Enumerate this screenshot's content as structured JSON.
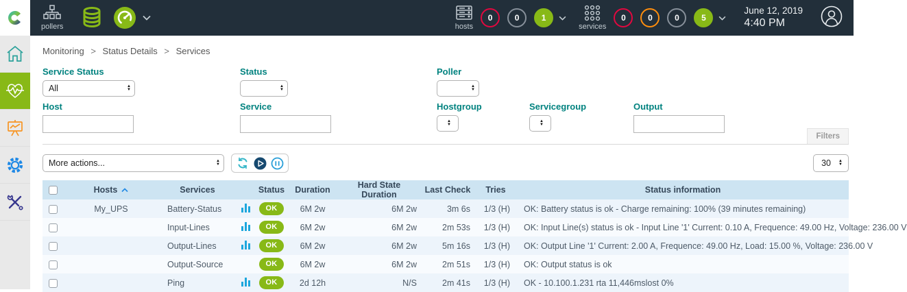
{
  "topbar": {
    "pollers": {
      "label": "pollers"
    },
    "hosts_section": {
      "label": "hosts",
      "counters": [
        {
          "value": "0",
          "type": "down"
        },
        {
          "value": "0",
          "type": "unreachable"
        },
        {
          "value": "1",
          "type": "up"
        }
      ]
    },
    "services_section": {
      "label": "services",
      "counters": [
        {
          "value": "0",
          "type": "critical"
        },
        {
          "value": "0",
          "type": "warning"
        },
        {
          "value": "0",
          "type": "unknown"
        },
        {
          "value": "5",
          "type": "ok"
        }
      ]
    },
    "clock": {
      "date": "June 12, 2019",
      "time": "4:40 PM"
    }
  },
  "sidebar": {
    "items": [
      {
        "icon": "home-icon",
        "active": false
      },
      {
        "icon": "monitoring-heartbeat-icon",
        "active": true
      },
      {
        "icon": "reporting-easel-icon",
        "active": false
      },
      {
        "icon": "configuration-gear-icon",
        "active": false
      },
      {
        "icon": "administration-tools-icon",
        "active": false
      }
    ]
  },
  "breadcrumb": {
    "items": [
      "Monitoring",
      "Status Details",
      "Services"
    ],
    "separator": ">"
  },
  "filters": {
    "panel_label": "Filters",
    "service_status": {
      "label": "Service Status",
      "value": "All"
    },
    "status": {
      "label": "Status",
      "value": ""
    },
    "poller": {
      "label": "Poller",
      "value": ""
    },
    "host": {
      "label": "Host",
      "value": ""
    },
    "service": {
      "label": "Service",
      "value": ""
    },
    "hostgroup": {
      "label": "Hostgroup",
      "value": ""
    },
    "servicegroup": {
      "label": "Servicegroup",
      "value": ""
    },
    "output": {
      "label": "Output",
      "value": ""
    }
  },
  "toolbar": {
    "more_actions_label": "More actions...",
    "action_icons": [
      "refresh-icon",
      "play-icon",
      "pause-icon"
    ],
    "page_size": "30"
  },
  "table": {
    "headers": {
      "hosts": "Hosts",
      "services": "Services",
      "status": "Status",
      "duration": "Duration",
      "hard_state_duration": "Hard State Duration",
      "last_check": "Last Check",
      "tries": "Tries",
      "status_information": "Status information"
    },
    "rows": [
      {
        "host": "My_UPS",
        "service": "Battery-Status",
        "has_graph": true,
        "status": "OK",
        "duration": "6M 2w",
        "hard_state_duration": "6M 2w",
        "last_check": "3m 6s",
        "tries": "1/3 (H)",
        "info": "OK: Battery status is ok - Charge remaining: 100% (39 minutes remaining)"
      },
      {
        "host": "",
        "service": "Input-Lines",
        "has_graph": true,
        "status": "OK",
        "duration": "6M 2w",
        "hard_state_duration": "6M 2w",
        "last_check": "2m 53s",
        "tries": "1/3 (H)",
        "info": "OK: Input Line(s) status is ok - Input Line '1' Current: 0.10 A, Frequence: 49.00 Hz, Voltage: 236.00 V"
      },
      {
        "host": "",
        "service": "Output-Lines",
        "has_graph": true,
        "status": "OK",
        "duration": "6M 2w",
        "hard_state_duration": "6M 2w",
        "last_check": "5m 16s",
        "tries": "1/3 (H)",
        "info": "OK: Output Line '1' Current: 2.00 A, Frequence: 49.00 Hz, Load: 15.00 %, Voltage: 236.00 V"
      },
      {
        "host": "",
        "service": "Output-Source",
        "has_graph": false,
        "status": "OK",
        "duration": "6M 2w",
        "hard_state_duration": "6M 2w",
        "last_check": "2m 51s",
        "tries": "1/3 (H)",
        "info": "OK: Output status is ok"
      },
      {
        "host": "",
        "service": "Ping",
        "has_graph": true,
        "status": "OK",
        "duration": "2d 12h",
        "hard_state_duration": "N/S",
        "last_check": "2m 41s",
        "tries": "1/3 (H)",
        "info": "OK - 10.100.1.231 rta 11,446mslost 0%"
      }
    ]
  },
  "colors": {
    "topbar_bg": "#222f3a",
    "sidebar_bg": "#e9e9e9",
    "brand_green": "#88b917",
    "status_red": "#e2083f",
    "status_orange": "#ff8e0d",
    "status_gray": "#87909a",
    "accent_teal": "#00827f",
    "table_header_bg": "#cde4f2",
    "row_odd_bg": "#edf4fb",
    "row_even_bg": "#f8fbfe",
    "graph_blue": "#1da7dd",
    "icon_blue": "#1e88e5",
    "icon_orange": "#f79421",
    "icon_dark_blue": "#38388f",
    "home_teal": "#2aa19a"
  }
}
